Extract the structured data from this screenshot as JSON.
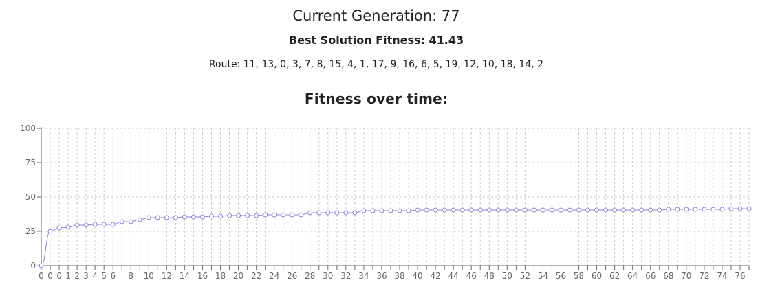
{
  "header": {
    "generation_label": "Current Generation:",
    "generation_value": "77",
    "best_label": "Best Solution Fitness:",
    "best_value": "41.43",
    "route_label": "Route:",
    "route_value": "11, 13, 0, 3, 7, 8, 15, 4, 1, 17, 9, 16, 6, 5, 19, 12, 10, 18, 14, 2",
    "chart_title": "Fitness over time:"
  },
  "colors": {
    "line": "#8884d8",
    "grid": "#cccccc",
    "axis": "#666666",
    "point_fill": "#ffffff"
  },
  "chart_data": {
    "type": "line",
    "title": "Fitness over time:",
    "xlabel": "",
    "ylabel": "",
    "ylim": [
      0,
      100
    ],
    "yticks": [
      0,
      25,
      50,
      75,
      100
    ],
    "grid": true,
    "grid_style": "dashed",
    "x_tick_interval": 1,
    "x": [
      0,
      0,
      0,
      1,
      2,
      3,
      4,
      5,
      6,
      7,
      8,
      9,
      10,
      11,
      12,
      13,
      14,
      15,
      16,
      17,
      18,
      19,
      20,
      21,
      22,
      23,
      24,
      25,
      26,
      27,
      28,
      29,
      30,
      31,
      32,
      33,
      34,
      35,
      36,
      37,
      38,
      39,
      40,
      41,
      42,
      43,
      44,
      45,
      46,
      47,
      48,
      49,
      50,
      51,
      52,
      53,
      54,
      55,
      56,
      57,
      58,
      59,
      60,
      61,
      62,
      63,
      64,
      65,
      66,
      67,
      68,
      69,
      70,
      71,
      72,
      73,
      74,
      75,
      76,
      77
    ],
    "series": [
      {
        "values": [
          0,
          25,
          27.5,
          28,
          29.5,
          29.5,
          30,
          30,
          30,
          32,
          32,
          33.5,
          35,
          35,
          35,
          35,
          35.5,
          35.5,
          35.5,
          36,
          36,
          36.5,
          36.5,
          36.5,
          36.5,
          37,
          37,
          37,
          37,
          37,
          38.5,
          38.5,
          38.5,
          38.5,
          38.5,
          38.5,
          40,
          40,
          40,
          40,
          40,
          40,
          40.5,
          40.5,
          40.5,
          40.5,
          40.5,
          40.5,
          40.5,
          40.5,
          40.5,
          40.5,
          40.5,
          40.5,
          40.5,
          40.5,
          40.5,
          40.5,
          40.5,
          40.5,
          40.5,
          40.5,
          40.5,
          40.5,
          40.5,
          40.5,
          40.5,
          40.5,
          40.5,
          40.5,
          41,
          41,
          41,
          41,
          41,
          41,
          41,
          41.43,
          41.43,
          41.43
        ]
      }
    ]
  }
}
